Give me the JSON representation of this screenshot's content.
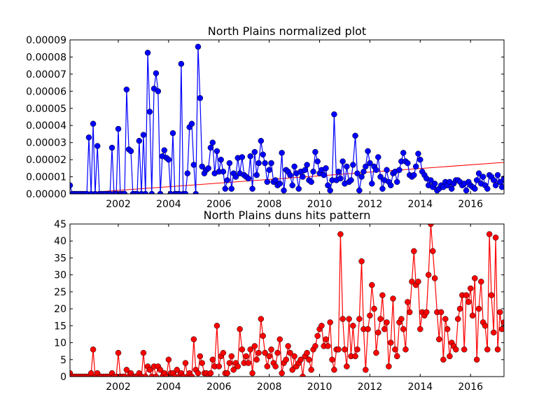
{
  "chart_data": [
    {
      "type": "line",
      "title": "North Plains normalized plot",
      "x": [
        2000.08,
        2000.17,
        2000.25,
        2000.33,
        2000.42,
        2000.5,
        2000.58,
        2000.67,
        2000.75,
        2000.83,
        2000.92,
        2001.0,
        2001.08,
        2001.17,
        2001.25,
        2001.33,
        2001.42,
        2001.5,
        2001.58,
        2001.67,
        2001.75,
        2001.83,
        2001.92,
        2002.0,
        2002.08,
        2002.17,
        2002.25,
        2002.33,
        2002.42,
        2002.5,
        2002.58,
        2002.67,
        2002.75,
        2002.83,
        2002.92,
        2003.0,
        2003.08,
        2003.17,
        2003.25,
        2003.33,
        2003.42,
        2003.5,
        2003.58,
        2003.67,
        2003.75,
        2003.83,
        2003.92,
        2004.0,
        2004.08,
        2004.17,
        2004.25,
        2004.33,
        2004.42,
        2004.5,
        2004.58,
        2004.67,
        2004.75,
        2004.83,
        2004.92,
        2005.0,
        2005.08,
        2005.17,
        2005.25,
        2005.33,
        2005.42,
        2005.5,
        2005.58,
        2005.67,
        2005.75,
        2005.83,
        2005.92,
        2006.0,
        2006.08,
        2006.17,
        2006.25,
        2006.33,
        2006.42,
        2006.5,
        2006.58,
        2006.67,
        2006.75,
        2006.83,
        2006.92,
        2007.0,
        2007.08,
        2007.17,
        2007.25,
        2007.33,
        2007.42,
        2007.5,
        2007.58,
        2007.67,
        2007.75,
        2007.83,
        2007.92,
        2008.0,
        2008.08,
        2008.17,
        2008.25,
        2008.33,
        2008.42,
        2008.5,
        2008.58,
        2008.67,
        2008.75,
        2008.83,
        2008.92,
        2009.0,
        2009.08,
        2009.17,
        2009.25,
        2009.33,
        2009.42,
        2009.5,
        2009.58,
        2009.67,
        2009.75,
        2009.83,
        2009.92,
        2010.0,
        2010.08,
        2010.17,
        2010.25,
        2010.33,
        2010.42,
        2010.5,
        2010.58,
        2010.67,
        2010.75,
        2010.83,
        2010.92,
        2011.0,
        2011.08,
        2011.17,
        2011.25,
        2011.33,
        2011.42,
        2011.5,
        2011.58,
        2011.67,
        2011.75,
        2011.83,
        2011.92,
        2012.0,
        2012.08,
        2012.17,
        2012.25,
        2012.33,
        2012.42,
        2012.5,
        2012.58,
        2012.67,
        2012.75,
        2012.83,
        2012.92,
        2013.0,
        2013.08,
        2013.17,
        2013.25,
        2013.33,
        2013.42,
        2013.5,
        2013.58,
        2013.67,
        2013.75,
        2013.83,
        2013.92,
        2014.0,
        2014.08,
        2014.17,
        2014.25,
        2014.33,
        2014.42,
        2014.5,
        2014.58,
        2014.67,
        2014.75,
        2014.83,
        2014.92,
        2015.0,
        2015.08,
        2015.17,
        2015.25,
        2015.33,
        2015.42,
        2015.5,
        2015.58,
        2015.67,
        2015.75,
        2015.83,
        2015.92,
        2016.0,
        2016.08,
        2016.17,
        2016.25,
        2016.33,
        2016.42,
        2016.5,
        2016.58,
        2016.67,
        2016.75,
        2016.83,
        2016.92,
        2017.0,
        2017.08,
        2017.17,
        2017.25,
        2017.33
      ],
      "series": [
        {
          "color": "#0000ff",
          "values": [
            5e-06,
            0,
            0,
            0,
            0,
            0,
            0,
            0,
            0,
            3.3e-05,
            0,
            4.1e-05,
            0,
            2.8e-05,
            0,
            0,
            0,
            0,
            0,
            0,
            2.7e-05,
            0,
            0,
            3.8e-05,
            0,
            0,
            0,
            6.1e-05,
            2.6e-05,
            2.5e-05,
            0,
            0,
            0,
            3.1e-05,
            0,
            3.45e-05,
            0,
            8.25e-05,
            4.8e-05,
            0,
            6.15e-05,
            7.05e-05,
            6e-05,
            0,
            2.2e-05,
            2.55e-05,
            2.1e-05,
            2e-05,
            0,
            3.55e-05,
            0,
            0,
            0,
            7.6e-05,
            0,
            0,
            1.2e-05,
            3.9e-05,
            4.1e-05,
            1.7e-05,
            0,
            8.6e-05,
            5.6e-05,
            1.6e-05,
            1.2e-05,
            1.4e-05,
            1.5e-05,
            2.7e-05,
            3e-05,
            1.2e-05,
            2.5e-05,
            1.3e-05,
            2e-05,
            1.3e-05,
            3e-06,
            8e-06,
            1.8e-05,
            3e-06,
            1.2e-05,
            1e-05,
            2.1e-05,
            1.2e-05,
            2.15e-05,
            1.1e-05,
            1e-05,
            9e-06,
            2.2e-05,
            3e-06,
            2.45e-05,
            1.1e-05,
            1.8e-05,
            3.1e-05,
            2.3e-05,
            1.8e-05,
            7e-06,
            1.4e-05,
            1.8e-05,
            7e-06,
            8e-06,
            5e-06,
            6e-06,
            2.4e-05,
            2e-06,
            1.4e-05,
            1.3e-05,
            1.1e-05,
            5e-06,
            1.6e-05,
            1.2e-05,
            3e-06,
            1.3e-05,
            1e-05,
            1.4e-05,
            1.7e-05,
            8e-06,
            7e-06,
            1.3e-05,
            2.45e-05,
            1.9e-05,
            1.2e-05,
            1.4e-05,
            1.1e-05,
            1.5e-05,
            5e-06,
            2e-06,
            8e-06,
            4.65e-05,
            8e-06,
            1.3e-05,
            9e-06,
            1.9e-05,
            6e-06,
            1.6e-05,
            7e-06,
            8e-06,
            1.7e-05,
            3.4e-05,
            1.2e-05,
            2e-06,
            1e-05,
            1.3e-05,
            1.6e-05,
            2.5e-05,
            1.8e-05,
            6e-06,
            1.6e-05,
            1.4e-05,
            2.15e-05,
            1e-05,
            3e-06,
            8e-06,
            1.4e-05,
            7e-06,
            5e-06,
            1.2e-05,
            1.3e-05,
            7e-06,
            1.4e-05,
            1.9e-05,
            2.4e-05,
            1.9e-05,
            1.8e-05,
            1.1e-05,
            1e-05,
            1.1e-05,
            1.6e-05,
            2.35e-05,
            2e-05,
            1.3e-05,
            1.1e-05,
            9e-06,
            5e-06,
            8e-06,
            4e-06,
            6e-06,
            2e-06,
            3e-06,
            5e-06,
            4e-06,
            7e-06,
            5e-06,
            7e-06,
            3e-06,
            6e-06,
            8e-06,
            8e-06,
            7e-06,
            5e-06,
            6e-06,
            2e-06,
            7e-06,
            5e-06,
            4e-06,
            3e-06,
            8e-06,
            1.2e-05,
            6e-06,
            1e-05,
            5e-06,
            3e-06,
            1.1e-05,
            1e-05,
            8e-06,
            5e-06,
            1.1e-05,
            7e-06,
            4e-06,
            9e-06
          ]
        }
      ],
      "trend": {
        "color": "#ff0000",
        "x": [
          2000.08,
          2017.33
        ],
        "values": [
          0,
          1.84e-05
        ]
      },
      "xlim": [
        2000.08,
        2017.33
      ],
      "xticks": [
        2002,
        2004,
        2006,
        2008,
        2010,
        2012,
        2014,
        2016
      ],
      "ylim": [
        0,
        9e-05
      ],
      "yticks": [
        {
          "value": 0,
          "label": "0.00000"
        },
        1e-05,
        2e-05,
        3e-05,
        4e-05,
        5e-05,
        6e-05,
        7e-05,
        8e-05,
        9e-05
      ]
    },
    {
      "type": "line",
      "title": "North Plains duns hits pattern",
      "x": [
        2000.08,
        2000.17,
        2000.25,
        2000.33,
        2000.42,
        2000.5,
        2000.58,
        2000.67,
        2000.75,
        2000.83,
        2000.92,
        2001.0,
        2001.08,
        2001.17,
        2001.25,
        2001.33,
        2001.42,
        2001.5,
        2001.58,
        2001.67,
        2001.75,
        2001.83,
        2001.92,
        2002.0,
        2002.08,
        2002.17,
        2002.25,
        2002.33,
        2002.42,
        2002.5,
        2002.58,
        2002.67,
        2002.75,
        2002.83,
        2002.92,
        2003.0,
        2003.08,
        2003.17,
        2003.25,
        2003.33,
        2003.42,
        2003.5,
        2003.58,
        2003.67,
        2003.75,
        2003.83,
        2003.92,
        2004.0,
        2004.08,
        2004.17,
        2004.25,
        2004.33,
        2004.42,
        2004.5,
        2004.58,
        2004.67,
        2004.75,
        2004.83,
        2004.92,
        2005.0,
        2005.08,
        2005.17,
        2005.25,
        2005.33,
        2005.42,
        2005.5,
        2005.58,
        2005.67,
        2005.75,
        2005.83,
        2005.92,
        2006.0,
        2006.08,
        2006.17,
        2006.25,
        2006.33,
        2006.42,
        2006.5,
        2006.58,
        2006.67,
        2006.75,
        2006.83,
        2006.92,
        2007.0,
        2007.08,
        2007.17,
        2007.25,
        2007.33,
        2007.42,
        2007.5,
        2007.58,
        2007.67,
        2007.75,
        2007.83,
        2007.92,
        2008.0,
        2008.08,
        2008.17,
        2008.25,
        2008.33,
        2008.42,
        2008.5,
        2008.58,
        2008.67,
        2008.75,
        2008.83,
        2008.92,
        2009.0,
        2009.08,
        2009.17,
        2009.25,
        2009.33,
        2009.42,
        2009.5,
        2009.58,
        2009.67,
        2009.75,
        2009.83,
        2009.92,
        2010.0,
        2010.08,
        2010.17,
        2010.25,
        2010.33,
        2010.42,
        2010.5,
        2010.58,
        2010.67,
        2010.75,
        2010.83,
        2010.92,
        2011.0,
        2011.08,
        2011.17,
        2011.25,
        2011.33,
        2011.42,
        2011.5,
        2011.58,
        2011.67,
        2011.75,
        2011.83,
        2011.92,
        2012.0,
        2012.08,
        2012.17,
        2012.25,
        2012.33,
        2012.42,
        2012.5,
        2012.58,
        2012.67,
        2012.75,
        2012.83,
        2012.92,
        2013.0,
        2013.08,
        2013.17,
        2013.25,
        2013.33,
        2013.42,
        2013.5,
        2013.58,
        2013.67,
        2013.75,
        2013.83,
        2013.92,
        2014.0,
        2014.08,
        2014.17,
        2014.25,
        2014.33,
        2014.42,
        2014.5,
        2014.58,
        2014.67,
        2014.75,
        2014.83,
        2014.92,
        2015.0,
        2015.08,
        2015.17,
        2015.25,
        2015.33,
        2015.42,
        2015.5,
        2015.58,
        2015.67,
        2015.75,
        2015.83,
        2015.92,
        2016.0,
        2016.08,
        2016.17,
        2016.25,
        2016.33,
        2016.42,
        2016.5,
        2016.58,
        2016.67,
        2016.75,
        2016.83,
        2016.92,
        2017.0,
        2017.08,
        2017.17,
        2017.25,
        2017.33
      ],
      "series": [
        {
          "color": "#ff0000",
          "values": [
            1,
            0,
            0,
            0,
            0,
            0,
            0,
            0,
            0,
            0,
            1,
            8,
            0,
            1,
            0,
            0,
            0,
            0,
            0,
            0,
            1,
            0,
            0,
            7,
            0,
            0,
            0,
            2,
            0,
            1,
            0,
            0,
            0,
            1,
            0,
            7,
            0,
            3,
            2,
            0,
            3,
            0,
            3,
            2,
            0,
            1,
            0,
            5,
            1,
            1,
            0,
            2,
            0,
            1,
            0,
            4,
            0,
            1,
            0,
            11,
            2,
            1,
            6,
            4,
            1,
            1,
            0,
            1,
            5,
            3,
            15,
            3,
            6,
            7,
            1,
            1,
            4,
            6,
            2,
            4,
            3,
            14,
            8,
            4,
            6,
            4,
            8,
            1,
            9,
            5,
            7,
            17,
            12,
            7,
            3,
            6,
            8,
            4,
            3,
            7,
            11,
            1,
            4,
            5,
            9,
            7,
            2,
            6,
            3,
            4,
            5,
            0,
            6,
            7,
            5,
            2,
            8,
            9,
            12,
            14,
            15,
            9,
            11,
            9,
            16,
            5,
            2,
            8,
            8,
            42,
            17,
            8,
            3,
            17,
            6,
            15,
            6,
            8,
            17,
            34,
            14,
            2,
            14,
            18,
            27,
            20,
            7,
            13,
            17,
            24,
            14,
            16,
            3,
            10,
            23,
            8,
            6,
            16,
            17,
            14,
            8,
            22,
            19,
            28,
            37,
            27,
            28,
            14,
            19,
            18,
            19,
            30,
            45,
            37,
            29,
            19,
            11,
            19,
            5,
            17,
            14,
            6,
            10,
            9,
            8,
            17,
            20,
            24,
            8,
            24,
            22,
            26,
            18,
            29,
            5,
            20,
            28,
            16,
            15,
            8,
            42,
            24,
            13,
            41,
            8,
            19,
            14,
            16
          ]
        }
      ],
      "xlim": [
        2000.08,
        2017.33
      ],
      "xticks": [
        2002,
        2004,
        2006,
        2008,
        2010,
        2012,
        2014,
        2016
      ],
      "ylim": [
        0,
        45
      ],
      "yticks": [
        0,
        5,
        10,
        15,
        20,
        25,
        30,
        35,
        40,
        45
      ]
    }
  ]
}
